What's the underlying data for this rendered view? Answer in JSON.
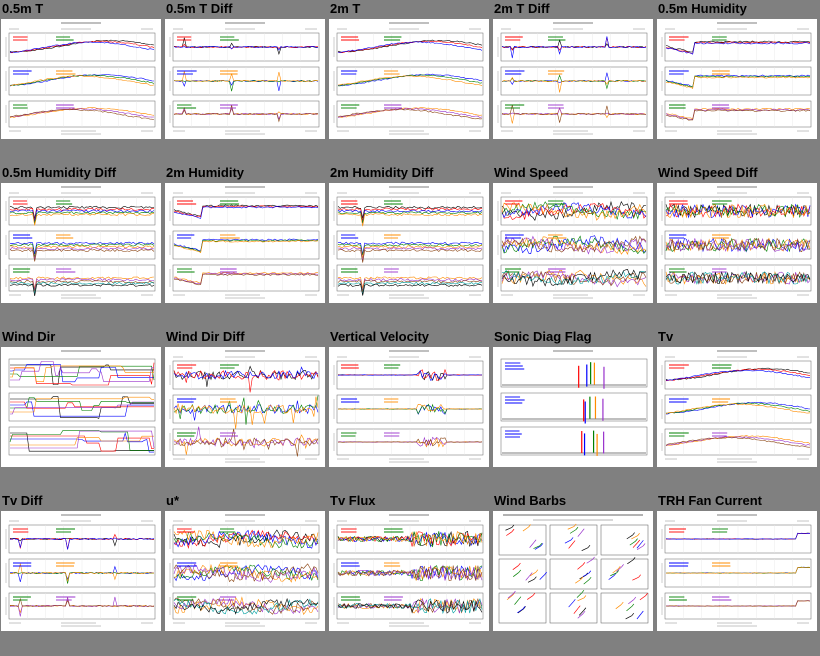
{
  "thumbnails": [
    {
      "title": "0.5m T",
      "kind": "temp"
    },
    {
      "title": "0.5m T Diff",
      "kind": "diff"
    },
    {
      "title": "2m T",
      "kind": "temp"
    },
    {
      "title": "2m T Diff",
      "kind": "diff"
    },
    {
      "title": "0.5m Humidity",
      "kind": "hum"
    },
    {
      "title": "0.5m Humidity Diff",
      "kind": "humdiff"
    },
    {
      "title": "2m Humidity",
      "kind": "hum"
    },
    {
      "title": "2m Humidity Diff",
      "kind": "humdiff"
    },
    {
      "title": "Wind Speed",
      "kind": "wind"
    },
    {
      "title": "Wind Speed Diff",
      "kind": "winddiff"
    },
    {
      "title": "Wind Dir",
      "kind": "dir"
    },
    {
      "title": "Wind Dir Diff",
      "kind": "dirdiff"
    },
    {
      "title": "Vertical Velocity",
      "kind": "vel"
    },
    {
      "title": "Sonic Diag Flag",
      "kind": "flag"
    },
    {
      "title": "Tv",
      "kind": "temp"
    },
    {
      "title": "Tv Diff",
      "kind": "diff"
    },
    {
      "title": "u*",
      "kind": "ustar"
    },
    {
      "title": "Tv Flux",
      "kind": "flux"
    },
    {
      "title": "Wind Barbs",
      "kind": "barbs"
    },
    {
      "title": "TRH Fan Current",
      "kind": "fan"
    }
  ],
  "colors": {
    "background": "#808080",
    "series": [
      "#000000",
      "#ff0000",
      "#0000ff",
      "#008000",
      "#ff8c00",
      "#9932cc",
      "#8b4513",
      "#00a0a0"
    ]
  }
}
